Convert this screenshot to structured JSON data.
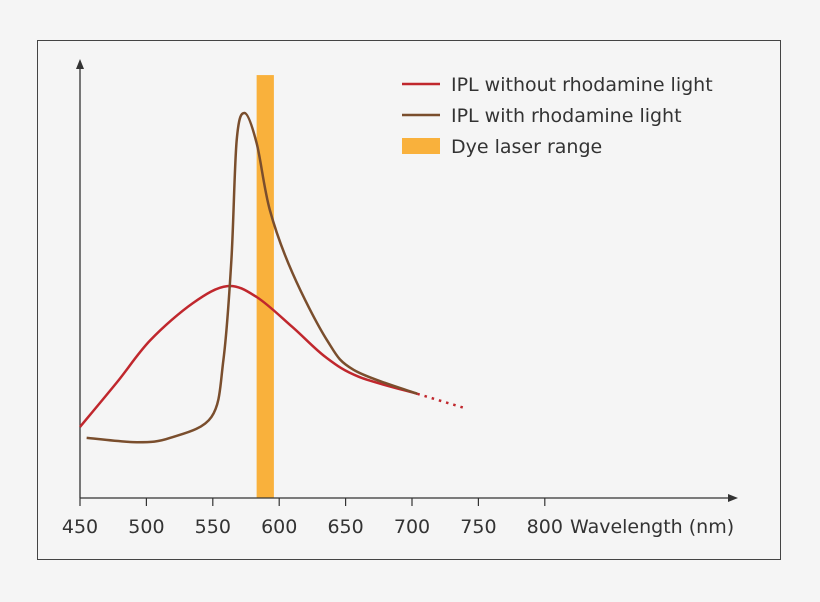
{
  "chart_data": {
    "type": "line",
    "title": "",
    "xlabel": "Wavelength (nm)",
    "ylabel": "",
    "xlim": [
      450,
      800
    ],
    "ylim": [
      0,
      100
    ],
    "x_ticks": [
      "450",
      "500",
      "550",
      "600",
      "650",
      "700",
      "750",
      "800"
    ],
    "y_ticks": [],
    "grid": false,
    "legend_position": "top-right",
    "series": [
      {
        "name": "IPL without rhodamine light",
        "color": "#c0272d",
        "points": [
          [
            450,
            16.3
          ],
          [
            478,
            26.6
          ],
          [
            503,
            36.2
          ],
          [
            535,
            44.7
          ],
          [
            561,
            48.6
          ],
          [
            583,
            46.1
          ],
          [
            610,
            39.2
          ],
          [
            635,
            32.3
          ],
          [
            660,
            27.8
          ],
          [
            704,
            23.9
          ]
        ],
        "dotted_extension": [
          [
            704,
            23.9
          ],
          [
            740,
            20.6
          ]
        ]
      },
      {
        "name": "IPL with rhodamine light",
        "color": "#7a4e2d",
        "points": [
          [
            455,
            13.8
          ],
          [
            493,
            12.8
          ],
          [
            518,
            13.8
          ],
          [
            549,
            18.6
          ],
          [
            558,
            31.7
          ],
          [
            564,
            54.6
          ],
          [
            568,
            82.1
          ],
          [
            574,
            88.3
          ],
          [
            583,
            81.4
          ],
          [
            593,
            66
          ],
          [
            610,
            51.6
          ],
          [
            636,
            36.2
          ],
          [
            656,
            29.4
          ],
          [
            704,
            23.9
          ]
        ]
      }
    ],
    "bands": [
      {
        "name": "Dye laser range",
        "color": "#f9b13c",
        "x_range": [
          583,
          596
        ],
        "y_top": 97
      }
    ]
  }
}
